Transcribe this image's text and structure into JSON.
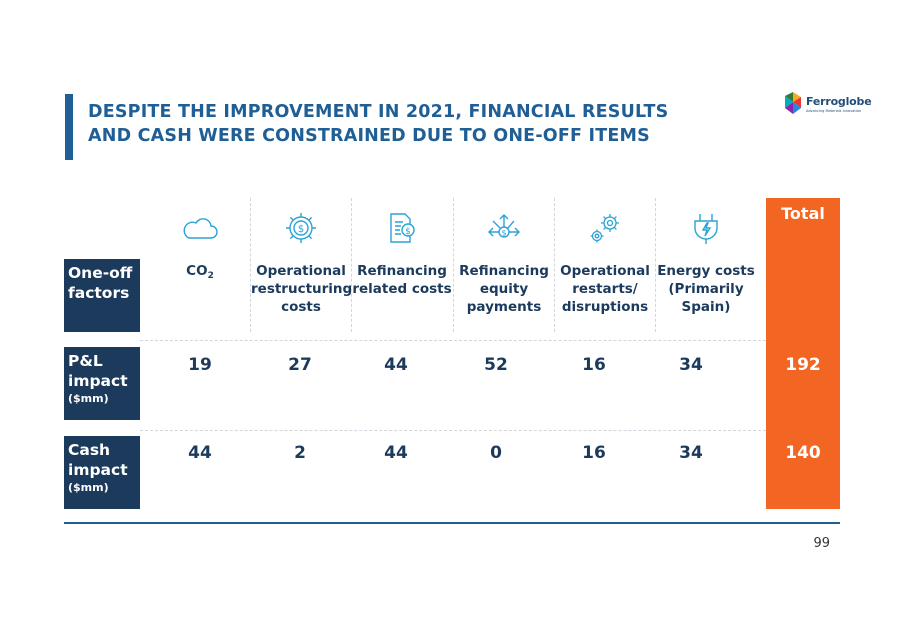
{
  "title": "DESPITE THE IMPROVEMENT IN 2021, FINANCIAL RESULTS AND CASH WERE CONSTRAINED DUE TO ONE-OFF ITEMS",
  "logo": {
    "name": "Ferroglobe",
    "tagline": "Advancing Materials Innovation"
  },
  "row_labels": {
    "factors": "One-off factors",
    "pl_main": "P&L impact",
    "pl_unit": "($mm)",
    "cash_main": "Cash impact",
    "cash_unit": "($mm)"
  },
  "columns": [
    {
      "label_main": "CO",
      "label_sub": "2",
      "icon": "cloud-icon",
      "pl": "19",
      "cash": "44"
    },
    {
      "label": "Operational restructuring costs",
      "icon": "gear-dollar-icon",
      "pl": "27",
      "cash": "2"
    },
    {
      "label": "Refinancing related costs",
      "icon": "document-dollar-icon",
      "pl": "44",
      "cash": "44"
    },
    {
      "label": "Refinancing equity payments",
      "icon": "dollar-arrows-icon",
      "pl": "52",
      "cash": "0"
    },
    {
      "label": "Operational restarts/ disruptions",
      "icon": "gears-icon",
      "pl": "16",
      "cash": "16"
    },
    {
      "label": "Energy costs (Primarily Spain)",
      "icon": "plug-icon",
      "pl": "34",
      "cash": "34"
    }
  ],
  "total": {
    "label": "Total",
    "pl": "192",
    "cash": "140"
  },
  "page_number": "99",
  "colors": {
    "navy": "#1b3a5c",
    "title_blue": "#1f5f96",
    "orange": "#f26522",
    "icon_blue": "#2ba3d4"
  }
}
